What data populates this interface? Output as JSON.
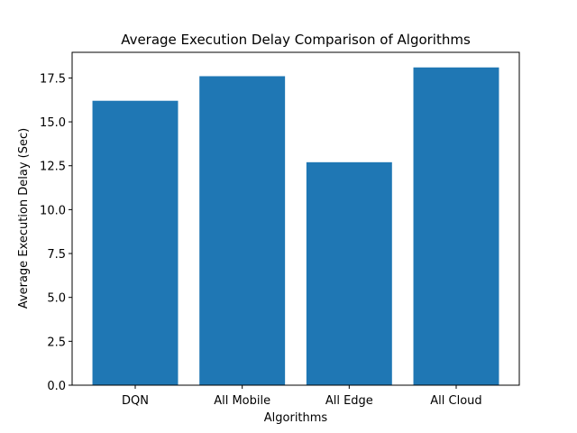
{
  "chart_data": {
    "type": "bar",
    "title": "Average Execution Delay Comparison of Algorithms",
    "xlabel": "Algorithms",
    "ylabel": "Average Execution Delay (Sec)",
    "categories": [
      "DQN",
      "All Mobile",
      "All Edge",
      "All Cloud"
    ],
    "values": [
      16.2,
      17.6,
      12.7,
      18.1
    ],
    "ylim": [
      0,
      18.96
    ],
    "yticks": [
      0.0,
      2.5,
      5.0,
      7.5,
      10.0,
      12.5,
      15.0,
      17.5
    ],
    "ytick_labels": [
      "0.0",
      "2.5",
      "5.0",
      "7.5",
      "10.0",
      "12.5",
      "15.0",
      "17.5"
    ],
    "bar_color": "#1f77b4",
    "grid": false,
    "legend": "none"
  }
}
